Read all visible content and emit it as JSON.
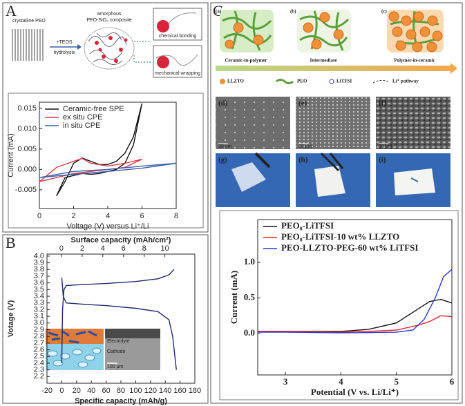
{
  "panel_labels": [
    "A",
    "B",
    "C"
  ],
  "schematic_A": {
    "left": "crystalline PEO",
    "reagent": "+TEOS",
    "process": "hydrolysis",
    "middle_line1": "amorphous",
    "middle_line2": "PEO-SiO₂ composite",
    "box1": "chemical bonding",
    "box2": "mechanical wrapping"
  },
  "inset_B": {
    "layer1": "Electrolyte",
    "layer2": "Cathode",
    "scale": "100 μm"
  },
  "schematic_C": {
    "labels": [
      "(a)",
      "(b)",
      "(c)"
    ],
    "stages": [
      "Ceramic-in-polymer",
      "Intermediate",
      "Polymer-in-ceramic"
    ],
    "legend": [
      "LLZTO",
      "PEO",
      "LiTFSI",
      "Li⁺ pathway"
    ],
    "sem_labels": [
      "(d)",
      "(e)",
      "(f)"
    ],
    "sem_scale": [
      "20 μm",
      "20 μm",
      "20 μm"
    ],
    "photo_labels": [
      "(g)",
      "(h)",
      "(i)"
    ]
  },
  "chart_data": [
    {
      "type": "line",
      "x_label": "Voltage (V) versus Li⁺/Li",
      "y_label": "Current (mA)",
      "xlim": [
        0,
        8
      ],
      "xticks": [
        0,
        2,
        4,
        6,
        8
      ],
      "ylim": [
        -0.0096,
        0.0165
      ],
      "yticks": [
        {
          "value": -0.005,
          "label": "-0.005"
        },
        {
          "value": 0,
          "label": "0.000"
        },
        {
          "value": 0.005,
          "label": "0.005"
        },
        {
          "value": 0.01,
          "label": "0.010"
        },
        {
          "value": 0.015,
          "label": "0.015"
        }
      ],
      "legend": "upper left",
      "series": [
        {
          "name": "Ceramic-free SPE",
          "color": "#111111",
          "x": [
            1.0,
            1.5,
            2.0,
            2.5,
            3.0,
            3.5,
            4.0,
            4.5,
            5.0,
            5.5,
            6.0,
            5.5,
            5.0,
            4.5,
            4.0,
            3.5,
            3.0,
            2.5,
            2.0,
            1.5,
            1.0
          ],
          "values": [
            -0.0065,
            -0.003,
            0.0015,
            0.0028,
            0.002,
            0.0012,
            0.0012,
            0.002,
            0.004,
            0.008,
            0.0162,
            0.006,
            0.0015,
            0.0,
            -0.0005,
            -0.001,
            -0.0012,
            -0.001,
            -0.0015,
            -0.002,
            -0.0065
          ]
        },
        {
          "name": "ex situ CPE",
          "color": "#e0354a",
          "x": [
            0,
            1,
            2,
            2.5,
            3,
            4,
            5,
            6,
            5,
            4,
            3,
            2,
            1,
            0
          ],
          "values": [
            -0.003,
            0.0005,
            0.002,
            0.0027,
            0.0015,
            0.0008,
            0.0015,
            0.0025,
            0.0005,
            0.0,
            -0.0005,
            -0.001,
            -0.002,
            -0.003
          ]
        },
        {
          "name": "in situ CPE",
          "color": "#3b5fa8",
          "x": [
            0,
            2,
            4,
            6,
            8,
            6,
            4,
            2,
            0
          ],
          "values": [
            -0.002,
            -0.0005,
            0.0,
            0.0008,
            0.0015,
            0.0003,
            -0.0005,
            -0.0012,
            -0.002
          ]
        }
      ]
    },
    {
      "type": "line",
      "x_label": "Specific capacity (mAh/g)",
      "x2_label": "Surface capacity (mAh/cm²)",
      "y_label": "Votage (V)",
      "xlim": [
        -20,
        180
      ],
      "xticks": [
        -20,
        0,
        20,
        40,
        60,
        80,
        100,
        120,
        140,
        160,
        180
      ],
      "x2lim": [
        -1.4,
        12.9
      ],
      "x2ticks": [
        0,
        2,
        4,
        6,
        8,
        10
      ],
      "ylim": [
        2.1,
        4.03
      ],
      "yticks": [
        2.2,
        2.3,
        2.4,
        2.5,
        2.6,
        2.7,
        2.8,
        2.9,
        {
          "value": 3,
          "label": "3.0"
        },
        3.1,
        3.2,
        3.3,
        3.4,
        3.5,
        3.6,
        3.7,
        3.8,
        3.9,
        {
          "value": 4,
          "label": "4.0"
        }
      ],
      "series": [
        {
          "color": "#1c2a6b",
          "x": [
            0,
            1,
            3,
            6,
            20,
            60,
            100,
            130,
            145,
            152
          ],
          "values": [
            2.4,
            3.2,
            3.5,
            3.56,
            3.57,
            3.59,
            3.62,
            3.66,
            3.72,
            3.8
          ]
        },
        {
          "color": "#1c2a6b",
          "x": [
            0,
            2,
            6,
            30,
            60,
            100,
            130,
            145,
            150,
            153,
            155
          ],
          "values": [
            3.68,
            3.4,
            3.3,
            3.28,
            3.26,
            3.22,
            3.17,
            3.05,
            2.8,
            2.5,
            2.3
          ]
        }
      ]
    },
    {
      "type": "line",
      "x_label": "Potential (V vs. Li/Li⁺)",
      "y_label": "Current (mA)",
      "xlim": [
        2.5,
        6
      ],
      "xticks": [
        3,
        4,
        5,
        6
      ],
      "ylim": [
        -0.58,
        1.6
      ],
      "yticks": [
        {
          "value": 0,
          "label": "0.0"
        },
        0.5,
        {
          "value": 1,
          "label": "1.0"
        }
      ],
      "legend": "upper left",
      "series": [
        {
          "name": "PEO₈-LiTFSI",
          "color": "#111111",
          "x": [
            2.5,
            3,
            4,
            4.5,
            5,
            5.3,
            5.6,
            5.8,
            6
          ],
          "values": [
            0.03,
            0.03,
            0.03,
            0.06,
            0.15,
            0.3,
            0.45,
            0.48,
            0.43
          ]
        },
        {
          "name": "PEO₈-LiTFSI-10 wt% LLZTO",
          "color": "#e8242b",
          "x": [
            2.5,
            3,
            4,
            4.5,
            5,
            5.4,
            5.6,
            5.8,
            6
          ],
          "values": [
            0.03,
            0.03,
            0.02,
            0.03,
            0.05,
            0.12,
            0.17,
            0.25,
            0.24
          ]
        },
        {
          "name": "PEO-LLZTO-PEG-60 wt% LiTFSI",
          "color": "#2a35d8",
          "x": [
            2.5,
            3,
            4,
            5,
            5.3,
            5.5,
            5.7,
            5.85,
            6
          ],
          "values": [
            0.02,
            0.02,
            0.01,
            0.02,
            0.05,
            0.2,
            0.5,
            0.8,
            0.9
          ]
        }
      ]
    }
  ]
}
